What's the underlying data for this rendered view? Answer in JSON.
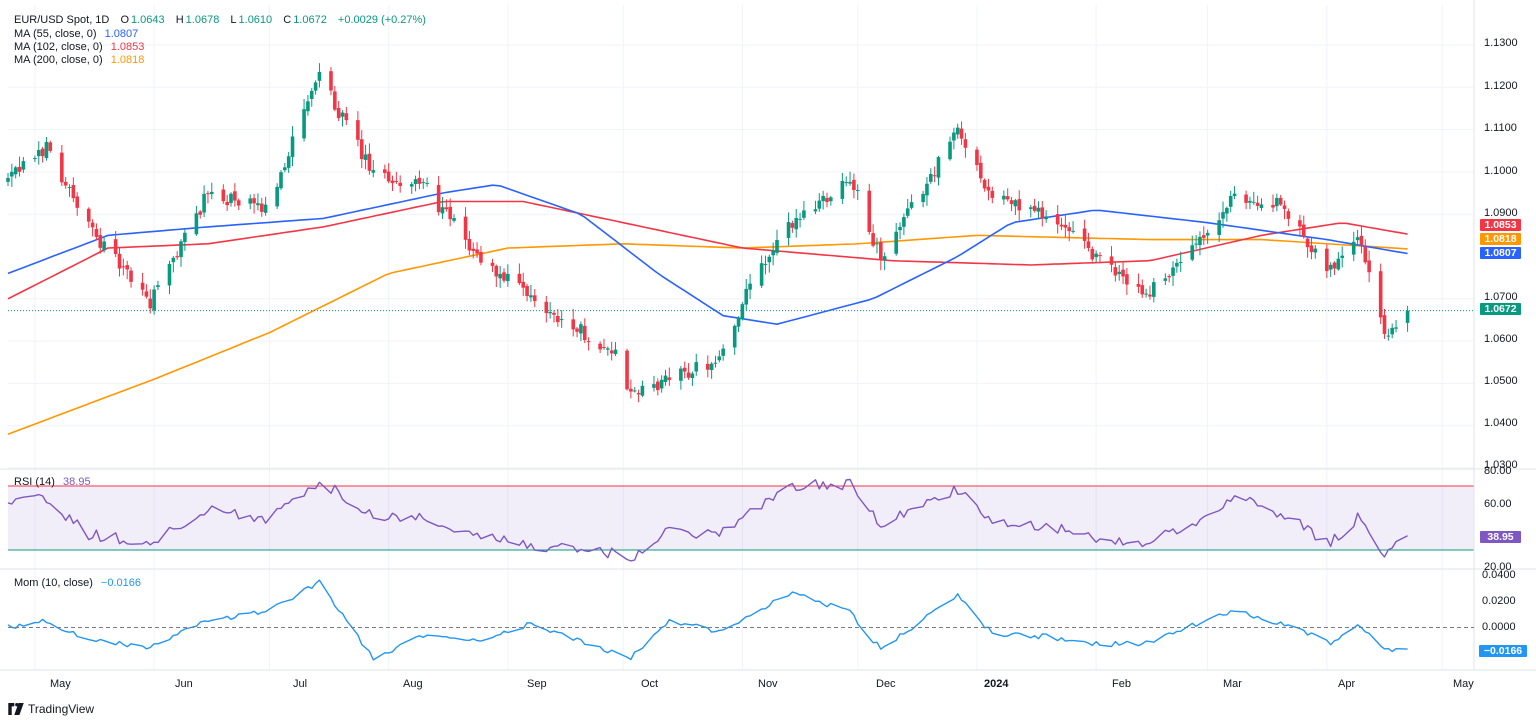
{
  "header": {
    "symbol": "EUR/USD Spot, 1D",
    "o_label": "O",
    "o": "1.0643",
    "h_label": "H",
    "h": "1.0678",
    "l_label": "L",
    "l": "1.0610",
    "c_label": "C",
    "c": "1.0672",
    "change": "+0.0029 (+0.27%)"
  },
  "legends": {
    "ma55": {
      "label": "MA (55, close, 0)",
      "value": "1.0807",
      "color": "#2962ff"
    },
    "ma102": {
      "label": "MA (102, close, 0)",
      "value": "1.0853",
      "color": "#f23645"
    },
    "ma200": {
      "label": "MA (200, close, 0)",
      "value": "1.0818",
      "color": "#ff9800"
    },
    "rsi": {
      "label": "RSI (14)",
      "value": "38.95",
      "color": "#7e57c2"
    },
    "mom": {
      "label": "Mom (10, close)",
      "value": "−0.0166",
      "color": "#2196f3"
    }
  },
  "price_tags": {
    "ma102": "1.0853",
    "ma200": "1.0818",
    "ma55": "1.0807",
    "last": "1.0672",
    "rsi": "38.95",
    "mom": "−0.0166"
  },
  "axes": {
    "price_ticks": [
      "1.1300",
      "1.1200",
      "1.1100",
      "1.1000",
      "1.0900",
      "1.0700",
      "1.0600",
      "1.0500",
      "1.0400",
      "1.0300"
    ],
    "rsi_ticks": [
      "80.00",
      "60.00",
      "20.00"
    ],
    "mom_ticks": [
      "0.0400",
      "0.0200",
      "0.0000"
    ],
    "time_ticks": [
      "May",
      "Jun",
      "Jul",
      "Aug",
      "Sep",
      "Oct",
      "Nov",
      "Dec",
      "2024",
      "Feb",
      "Mar",
      "Apr",
      "May"
    ]
  },
  "brand": "TradingView",
  "colors": {
    "up": "#089981",
    "down": "#f23645",
    "rsi_band": "#7e57c2",
    "grid": "#f0f3fa"
  },
  "chart_data": {
    "type": "candlestick",
    "title": "EUR/USD Spot, 1D",
    "last_close": 1.0672,
    "price_range": [
      1.03,
      1.133
    ],
    "anchors_close": [
      [
        "2023-04-24",
        1.098
      ],
      [
        "2023-05-04",
        1.106
      ],
      [
        "2023-05-15",
        1.087
      ],
      [
        "2023-05-31",
        1.069
      ],
      [
        "2023-06-15",
        1.095
      ],
      [
        "2023-06-30",
        1.091
      ],
      [
        "2023-07-14",
        1.123
      ],
      [
        "2023-07-28",
        1.099
      ],
      [
        "2023-08-10",
        1.097
      ],
      [
        "2023-08-25",
        1.079
      ],
      [
        "2023-09-07",
        1.07
      ],
      [
        "2023-09-29",
        1.057
      ],
      [
        "2023-10-03",
        1.047
      ],
      [
        "2023-10-13",
        1.051
      ],
      [
        "2023-10-26",
        1.056
      ],
      [
        "2023-11-03",
        1.073
      ],
      [
        "2023-11-14",
        1.088
      ],
      [
        "2023-11-29",
        1.099
      ],
      [
        "2023-12-07",
        1.079
      ],
      [
        "2023-12-27",
        1.11
      ],
      [
        "2024-01-05",
        1.094
      ],
      [
        "2024-01-19",
        1.09
      ],
      [
        "2024-02-02",
        1.079
      ],
      [
        "2024-02-14",
        1.071
      ],
      [
        "2024-03-01",
        1.085
      ],
      [
        "2024-03-08",
        1.094
      ],
      [
        "2024-03-20",
        1.092
      ],
      [
        "2024-04-02",
        1.077
      ],
      [
        "2024-04-09",
        1.086
      ],
      [
        "2024-04-16",
        1.062
      ],
      [
        "2024-04-22",
        1.0672
      ]
    ],
    "ma55_anchors": [
      [
        "2023-04-24",
        1.076
      ],
      [
        "2023-05-20",
        1.085
      ],
      [
        "2023-06-15",
        1.087
      ],
      [
        "2023-07-15",
        1.089
      ],
      [
        "2023-08-15",
        1.095
      ],
      [
        "2023-08-29",
        1.097
      ],
      [
        "2023-09-20",
        1.09
      ],
      [
        "2023-10-10",
        1.076
      ],
      [
        "2023-10-27",
        1.066
      ],
      [
        "2023-11-10",
        1.064
      ],
      [
        "2023-12-05",
        1.07
      ],
      [
        "2023-12-27",
        1.08
      ],
      [
        "2024-01-10",
        1.088
      ],
      [
        "2024-02-01",
        1.091
      ],
      [
        "2024-03-01",
        1.088
      ],
      [
        "2024-04-01",
        1.084
      ],
      [
        "2024-04-22",
        1.0807
      ]
    ],
    "ma102_anchors": [
      [
        "2023-04-24",
        1.07
      ],
      [
        "2023-05-20",
        1.082
      ],
      [
        "2023-06-15",
        1.083
      ],
      [
        "2023-07-15",
        1.087
      ],
      [
        "2023-08-15",
        1.093
      ],
      [
        "2023-09-05",
        1.093
      ],
      [
        "2023-10-01",
        1.088
      ],
      [
        "2023-11-01",
        1.082
      ],
      [
        "2023-12-10",
        1.079
      ],
      [
        "2024-01-15",
        1.078
      ],
      [
        "2024-02-15",
        1.079
      ],
      [
        "2024-03-15",
        1.085
      ],
      [
        "2024-04-05",
        1.088
      ],
      [
        "2024-04-22",
        1.0853
      ]
    ],
    "ma200_anchors": [
      [
        "2023-04-24",
        1.038
      ],
      [
        "2023-06-01",
        1.051
      ],
      [
        "2023-07-01",
        1.062
      ],
      [
        "2023-08-01",
        1.076
      ],
      [
        "2023-09-01",
        1.082
      ],
      [
        "2023-10-01",
        1.083
      ],
      [
        "2023-11-01",
        1.082
      ],
      [
        "2023-12-01",
        1.083
      ],
      [
        "2024-01-01",
        1.085
      ],
      [
        "2024-02-15",
        1.084
      ],
      [
        "2024-03-15",
        1.084
      ],
      [
        "2024-04-22",
        1.0818
      ]
    ],
    "rsi": {
      "range": [
        20,
        80
      ],
      "overbought": 70,
      "oversold": 30,
      "last": 38.95,
      "anchors": [
        [
          "2023-04-24",
          58
        ],
        [
          "2023-05-04",
          62
        ],
        [
          "2023-05-15",
          40
        ],
        [
          "2023-05-31",
          34
        ],
        [
          "2023-06-15",
          55
        ],
        [
          "2023-06-30",
          50
        ],
        [
          "2023-07-14",
          73
        ],
        [
          "2023-07-28",
          52
        ],
        [
          "2023-08-10",
          50
        ],
        [
          "2023-08-25",
          38
        ],
        [
          "2023-09-07",
          33
        ],
        [
          "2023-09-29",
          28
        ],
        [
          "2023-10-03",
          25
        ],
        [
          "2023-10-13",
          42
        ],
        [
          "2023-10-26",
          40
        ],
        [
          "2023-11-03",
          55
        ],
        [
          "2023-11-14",
          70
        ],
        [
          "2023-11-29",
          71
        ],
        [
          "2023-12-07",
          46
        ],
        [
          "2023-12-27",
          68
        ],
        [
          "2024-01-05",
          47
        ],
        [
          "2024-01-19",
          45
        ],
        [
          "2024-02-02",
          37
        ],
        [
          "2024-02-14",
          34
        ],
        [
          "2024-03-01",
          50
        ],
        [
          "2024-03-08",
          65
        ],
        [
          "2024-03-20",
          53
        ],
        [
          "2024-04-02",
          34
        ],
        [
          "2024-04-09",
          50
        ],
        [
          "2024-04-16",
          29
        ],
        [
          "2024-04-22",
          38.95
        ]
      ]
    },
    "momentum": {
      "range": [
        -0.026,
        0.04
      ],
      "zero": 0.0,
      "last": -0.0166,
      "anchors": [
        [
          "2023-04-24",
          0.0
        ],
        [
          "2023-05-04",
          0.005
        ],
        [
          "2023-05-15",
          -0.01
        ],
        [
          "2023-05-31",
          -0.015
        ],
        [
          "2023-06-15",
          0.005
        ],
        [
          "2023-06-30",
          0.012
        ],
        [
          "2023-07-14",
          0.035
        ],
        [
          "2023-07-28",
          -0.024
        ],
        [
          "2023-08-10",
          -0.006
        ],
        [
          "2023-08-25",
          -0.009
        ],
        [
          "2023-09-07",
          0.003
        ],
        [
          "2023-09-29",
          -0.02
        ],
        [
          "2023-10-03",
          -0.023
        ],
        [
          "2023-10-13",
          0.006
        ],
        [
          "2023-10-26",
          -0.004
        ],
        [
          "2023-11-03",
          0.01
        ],
        [
          "2023-11-14",
          0.027
        ],
        [
          "2023-11-29",
          0.012
        ],
        [
          "2023-12-07",
          -0.017
        ],
        [
          "2023-12-27",
          0.025
        ],
        [
          "2024-01-05",
          -0.005
        ],
        [
          "2024-01-19",
          -0.007
        ],
        [
          "2024-02-02",
          -0.013
        ],
        [
          "2024-02-14",
          -0.012
        ],
        [
          "2024-03-01",
          0.006
        ],
        [
          "2024-03-08",
          0.013
        ],
        [
          "2024-03-20",
          0.003
        ],
        [
          "2024-04-02",
          -0.012
        ],
        [
          "2024-04-09",
          0.003
        ],
        [
          "2024-04-16",
          -0.017
        ],
        [
          "2024-04-22",
          -0.0166
        ]
      ]
    }
  }
}
